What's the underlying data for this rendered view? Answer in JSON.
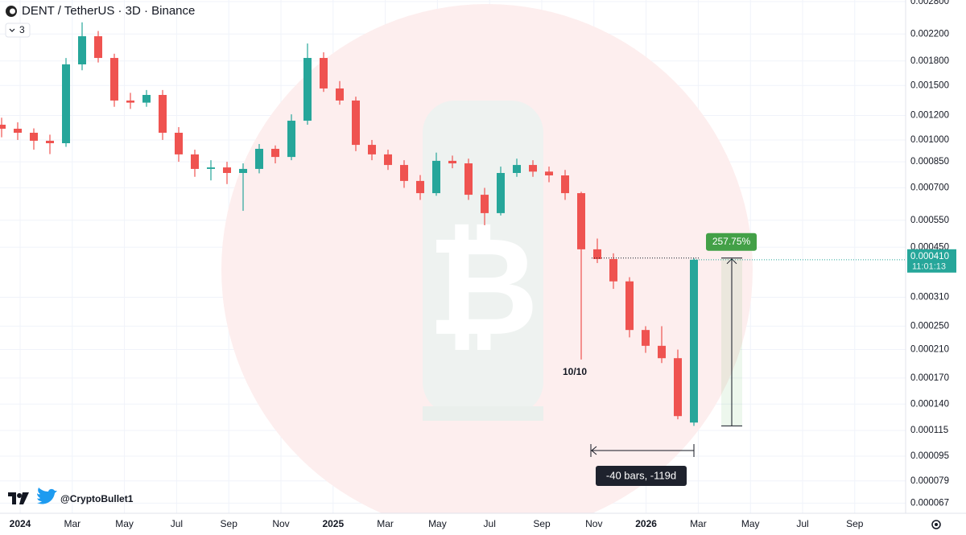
{
  "chart_data": {
    "type": "candlestick",
    "title": "DENT / TetherUS · 3D · Binance",
    "indicator_count": "3",
    "log_scale": true,
    "grid": true,
    "up_color": "#26a69a",
    "down_color": "#ef5350",
    "open": [
      0.00112,
      0.001087,
      0.001055,
      0.000994,
      0.000976,
      0.001755,
      0.002164,
      0.001841,
      0.001341,
      0.00132,
      0.001398,
      0.001055,
      0.000898,
      0.000806,
      0.000815,
      0.000782,
      0.000806,
      0.000936,
      0.000881,
      0.001154,
      0.001841,
      0.001467,
      0.001341,
      0.000964,
      0.000898,
      0.00083,
      0.000737,
      0.000673,
      0.000856,
      0.00084,
      0.000665,
      0.00058,
      0.000782,
      0.00083,
      0.00079,
      0.000768,
      0.000673,
      0.000443,
      0.000412,
      0.000349,
      0.000243,
      0.000216,
      0.000197,
      0.000122
    ],
    "high": [
      0.00118,
      0.00114,
      0.00109,
      0.00104,
      0.00184,
      0.0024,
      0.00225,
      0.0019,
      0.00142,
      0.00145,
      0.00145,
      0.0011,
      0.00093,
      0.00086,
      0.00085,
      0.00084,
      0.00097,
      0.00096,
      0.00121,
      0.00205,
      0.00192,
      0.00155,
      0.00138,
      0.001,
      0.00093,
      0.00086,
      0.00077,
      0.00091,
      0.00089,
      0.00087,
      0.0007,
      0.00082,
      0.00087,
      0.00086,
      0.00082,
      0.0008,
      0.00068,
      0.00048,
      0.00043,
      0.00036,
      0.00025,
      0.00025,
      0.00021,
      0.000415
    ],
    "low": [
      0.00102,
      0.001,
      0.00093,
      0.0009,
      0.00095,
      0.00168,
      0.00178,
      0.00128,
      0.00126,
      0.00128,
      0.001,
      0.00085,
      0.00076,
      0.00074,
      0.00072,
      0.00059,
      0.00078,
      0.00084,
      0.00086,
      0.00112,
      0.00143,
      0.0013,
      0.00092,
      0.00086,
      0.0008,
      0.0007,
      0.00064,
      0.00066,
      0.00081,
      0.00064,
      0.00053,
      0.00057,
      0.00076,
      0.00076,
      0.00073,
      0.00064,
      0.000195,
      0.0004,
      0.00033,
      0.00023,
      0.000205,
      0.00019,
      0.000125,
      0.000119
    ],
    "close": [
      0.001087,
      0.001055,
      0.000994,
      0.000976,
      0.001755,
      0.002164,
      0.001841,
      0.001341,
      0.00132,
      0.001398,
      0.001055,
      0.000898,
      0.000806,
      0.000815,
      0.000782,
      0.000806,
      0.000936,
      0.000881,
      0.001154,
      0.001841,
      0.001467,
      0.001341,
      0.000964,
      0.000898,
      0.00083,
      0.000737,
      0.000673,
      0.000856,
      0.00084,
      0.000665,
      0.00058,
      0.000782,
      0.00083,
      0.00079,
      0.000768,
      0.000673,
      0.000443,
      0.000412,
      0.000349,
      0.000243,
      0.000216,
      0.000197,
      0.000128,
      0.00041
    ],
    "ylim": [
      6.21e-05,
      0.002834
    ],
    "yticks": [
      {
        "value": 0.0028,
        "label": "0.002800"
      },
      {
        "value": 0.0022,
        "label": "0.002200"
      },
      {
        "value": 0.0018,
        "label": "0.001800"
      },
      {
        "value": 0.0015,
        "label": "0.001500"
      },
      {
        "value": 0.0012,
        "label": "0.001200"
      },
      {
        "value": 0.001,
        "label": "0.001000"
      },
      {
        "value": 0.00085,
        "label": "0.000850"
      },
      {
        "value": 0.0007,
        "label": "0.000700"
      },
      {
        "value": 0.00055,
        "label": "0.000550"
      },
      {
        "value": 0.00045,
        "label": "0.000450"
      },
      {
        "value": 0.00031,
        "label": "0.000310"
      },
      {
        "value": 0.00025,
        "label": "0.000250"
      },
      {
        "value": 0.00021,
        "label": "0.000210"
      },
      {
        "value": 0.00017,
        "label": "0.000170"
      },
      {
        "value": 0.00014,
        "label": "0.000140"
      },
      {
        "value": 0.000115,
        "label": "0.000115"
      },
      {
        "value": 9.5e-05,
        "label": "0.000095"
      },
      {
        "value": 7.9e-05,
        "label": "0.000079"
      },
      {
        "value": 6.7e-05,
        "label": "0.000067"
      }
    ],
    "x_labels": [
      "2024",
      "Mar",
      "May",
      "Jul",
      "Sep",
      "Nov",
      "2025",
      "Mar",
      "May",
      "Jul",
      "Sep",
      "Nov",
      "2026",
      "Mar",
      "May",
      "Jul",
      "Sep"
    ],
    "last_price": {
      "value": 0.00041,
      "label": "0.000410"
    },
    "countdown": "11:01:13",
    "measure_change": {
      "value": 257.75,
      "label": "257.75%"
    },
    "range_label": "-40 bars, -119d",
    "annotation": "10/10",
    "watermark": "@CryptoBullet1"
  }
}
